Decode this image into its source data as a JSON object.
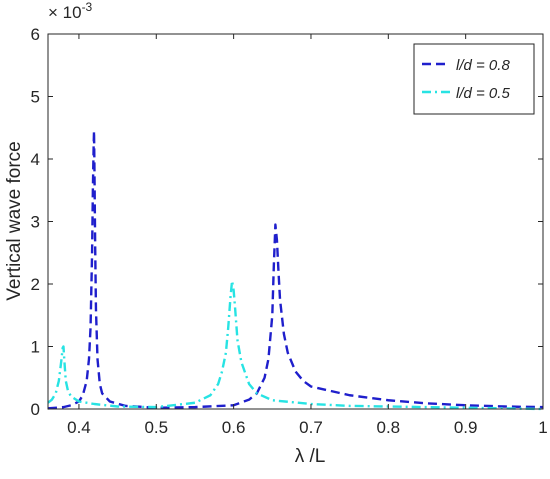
{
  "chart_data": {
    "type": "line",
    "xlabel": "λ /L",
    "ylabel": "Vertical wave force",
    "exponent_label": "× 10",
    "exponent_value": "-3",
    "xlim": [
      0.36,
      1.0
    ],
    "ylim": [
      0,
      6
    ],
    "xticks": [
      0.4,
      0.5,
      0.6,
      0.7,
      0.8,
      0.9,
      1.0
    ],
    "xtick_labels": [
      "0.4",
      "0.5",
      "0.6",
      "0.7",
      "0.8",
      "0.9",
      "1"
    ],
    "yticks": [
      0,
      1,
      2,
      3,
      4,
      5,
      6
    ],
    "ytick_labels": [
      "0",
      "1",
      "2",
      "3",
      "4",
      "5",
      "6"
    ],
    "grid": false,
    "legend_position": "top-right",
    "series": [
      {
        "name": "l/d = 0.8",
        "color": "#1f1fcc",
        "dash": "dashed",
        "x": [
          0.36,
          0.38,
          0.39,
          0.4,
          0.405,
          0.41,
          0.413,
          0.415,
          0.417,
          0.418,
          0.419,
          0.4195,
          0.42,
          0.421,
          0.422,
          0.424,
          0.427,
          0.43,
          0.44,
          0.46,
          0.5,
          0.55,
          0.6,
          0.62,
          0.63,
          0.64,
          0.645,
          0.65,
          0.652,
          0.654,
          0.656,
          0.658,
          0.66,
          0.665,
          0.67,
          0.68,
          0.69,
          0.7,
          0.75,
          0.8,
          0.85,
          0.9,
          0.95,
          1.0
        ],
        "y": [
          0.01,
          0.03,
          0.06,
          0.12,
          0.22,
          0.45,
          0.8,
          1.3,
          2.5,
          3.5,
          4.2,
          4.45,
          3.9,
          2.6,
          1.6,
          0.8,
          0.4,
          0.25,
          0.12,
          0.05,
          0.02,
          0.03,
          0.06,
          0.15,
          0.25,
          0.5,
          0.8,
          1.5,
          2.3,
          2.95,
          2.7,
          2.2,
          1.75,
          1.2,
          0.9,
          0.6,
          0.45,
          0.36,
          0.22,
          0.14,
          0.09,
          0.06,
          0.04,
          0.03
        ]
      },
      {
        "name": "l/d = 0.5",
        "color": "#27e3e3",
        "dash": "dashdot",
        "x": [
          0.36,
          0.365,
          0.37,
          0.374,
          0.377,
          0.379,
          0.38,
          0.381,
          0.383,
          0.386,
          0.39,
          0.4,
          0.42,
          0.45,
          0.5,
          0.55,
          0.57,
          0.58,
          0.585,
          0.59,
          0.593,
          0.596,
          0.598,
          0.6,
          0.602,
          0.605,
          0.61,
          0.62,
          0.63,
          0.65,
          0.7,
          0.75,
          0.8,
          0.85,
          0.9,
          0.95,
          1.0
        ],
        "y": [
          0.1,
          0.15,
          0.25,
          0.45,
          0.75,
          0.98,
          1.0,
          0.8,
          0.45,
          0.28,
          0.2,
          0.12,
          0.08,
          0.04,
          0.03,
          0.1,
          0.22,
          0.4,
          0.6,
          0.9,
          1.3,
          1.8,
          2.05,
          1.9,
          1.6,
          1.1,
          0.75,
          0.4,
          0.25,
          0.14,
          0.08,
          0.05,
          0.04,
          0.03,
          0.02,
          0.01,
          0.0
        ]
      }
    ]
  }
}
